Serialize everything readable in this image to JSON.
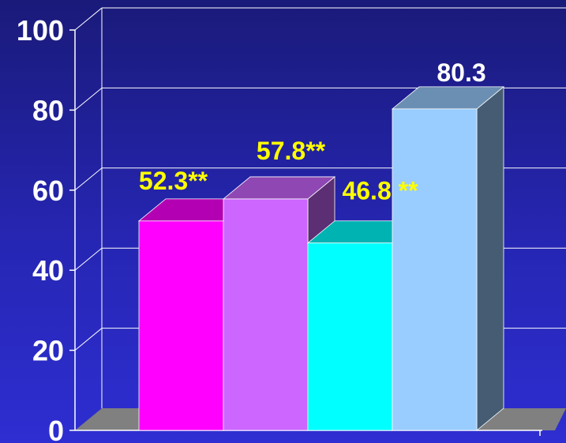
{
  "chart_data": {
    "type": "bar",
    "title": "",
    "xlabel": "",
    "ylabel": "",
    "ylim": [
      0,
      100
    ],
    "yticks": [
      0,
      20,
      40,
      60,
      80,
      100
    ],
    "grid": true,
    "legend": "none",
    "bars": [
      {
        "value": 52.3,
        "label": "52.3**",
        "color": "#ff00ff"
      },
      {
        "value": 57.8,
        "label": "57.8**",
        "color": "#cc66ff"
      },
      {
        "value": 46.8,
        "label": "46.8 **",
        "color": "#00ffff"
      },
      {
        "value": 80.3,
        "label": "80.3",
        "color": "#99ccff"
      }
    ],
    "label_colors": {
      "significant": "#ffff00",
      "reference": "#ffffff"
    },
    "grid_color": "#ffffff",
    "floor_color": "#808080"
  }
}
